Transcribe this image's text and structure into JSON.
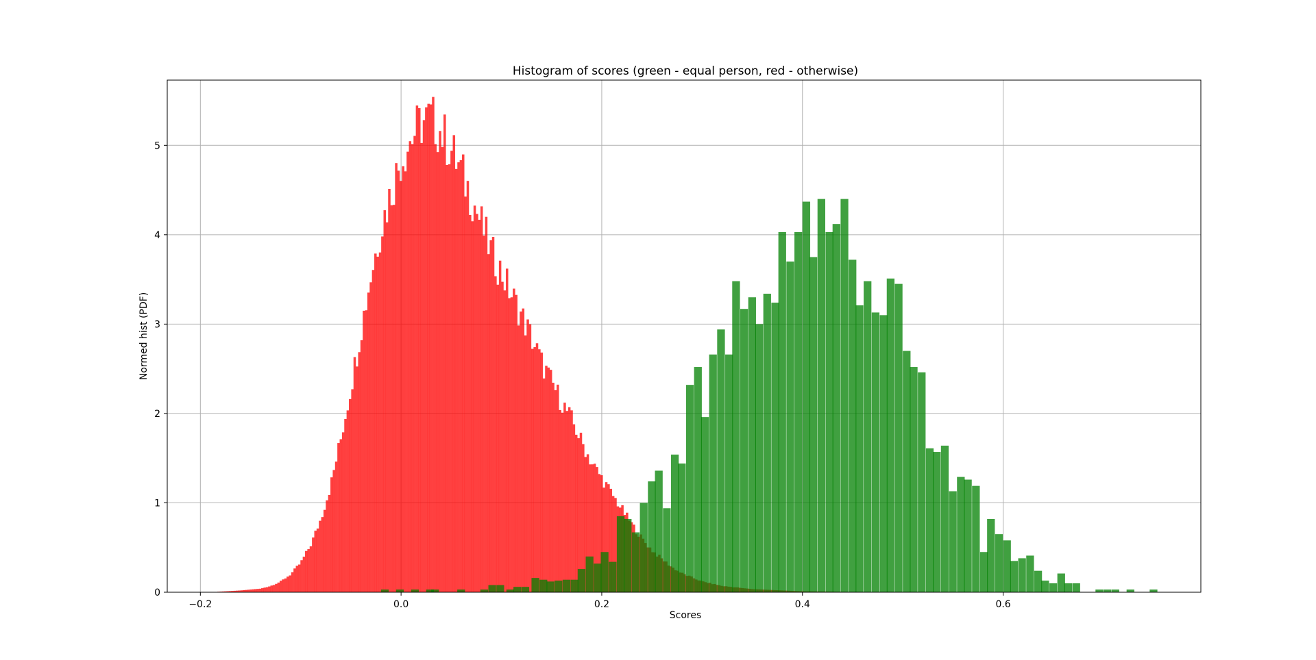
{
  "chart_data": {
    "type": "histogram",
    "title": "Histogram of scores (green - equal person, red - otherwise)",
    "xlabel": "Scores",
    "ylabel": "Normed hist (PDF)",
    "xlim": [
      -0.233,
      0.797
    ],
    "ylim": [
      0,
      5.73
    ],
    "xticks": [
      -0.2,
      0.0,
      0.2,
      0.4,
      0.6
    ],
    "xtick_labels": [
      "−0.2",
      "0.0",
      "0.2",
      "0.4",
      "0.6"
    ],
    "yticks": [
      0,
      1,
      2,
      3,
      4,
      5
    ],
    "ytick_labels": [
      "0",
      "1",
      "2",
      "3",
      "4",
      "5"
    ],
    "grid": true,
    "legend": "none",
    "series": [
      {
        "color": "#ff0000",
        "alpha": 0.75,
        "x_start": -0.19,
        "bin_width": 0.0023,
        "points": [
          [
            -0.19,
            0.0
          ],
          [
            -0.175,
            0.01
          ],
          [
            -0.16,
            0.02
          ],
          [
            -0.14,
            0.04
          ],
          [
            -0.13,
            0.07
          ],
          [
            -0.12,
            0.12
          ],
          [
            -0.11,
            0.2
          ],
          [
            -0.1,
            0.33
          ],
          [
            -0.09,
            0.53
          ],
          [
            -0.08,
            0.82
          ],
          [
            -0.07,
            1.2
          ],
          [
            -0.06,
            1.72
          ],
          [
            -0.05,
            2.3
          ],
          [
            -0.04,
            2.93
          ],
          [
            -0.03,
            3.55
          ],
          [
            -0.02,
            4.08
          ],
          [
            -0.01,
            4.48
          ],
          [
            0.0,
            4.85
          ],
          [
            0.01,
            5.08
          ],
          [
            0.02,
            5.25
          ],
          [
            0.03,
            5.3
          ],
          [
            0.04,
            5.15
          ],
          [
            0.05,
            4.95
          ],
          [
            0.06,
            4.7
          ],
          [
            0.07,
            4.43
          ],
          [
            0.08,
            4.12
          ],
          [
            0.09,
            3.8
          ],
          [
            0.1,
            3.58
          ],
          [
            0.11,
            3.33
          ],
          [
            0.12,
            3.1
          ],
          [
            0.13,
            2.85
          ],
          [
            0.14,
            2.57
          ],
          [
            0.15,
            2.35
          ],
          [
            0.16,
            2.13
          ],
          [
            0.17,
            1.93
          ],
          [
            0.18,
            1.68
          ],
          [
            0.19,
            1.45
          ],
          [
            0.2,
            1.28
          ],
          [
            0.21,
            1.1
          ],
          [
            0.22,
            0.93
          ],
          [
            0.23,
            0.76
          ],
          [
            0.24,
            0.6
          ],
          [
            0.25,
            0.47
          ],
          [
            0.26,
            0.37
          ],
          [
            0.27,
            0.28
          ],
          [
            0.28,
            0.21
          ],
          [
            0.3,
            0.12
          ],
          [
            0.32,
            0.07
          ],
          [
            0.35,
            0.035
          ],
          [
            0.4,
            0.01
          ],
          [
            0.45,
            0.003
          ],
          [
            0.5,
            0.0
          ]
        ]
      },
      {
        "color": "#008000",
        "alpha": 0.75,
        "bin_width": 0.0077,
        "bins": [
          [
            -0.02,
            0.03
          ],
          [
            -0.005,
            0.03
          ],
          [
            0.01,
            0.03
          ],
          [
            0.025,
            0.03
          ],
          [
            0.03,
            0.03
          ],
          [
            0.056,
            0.03
          ],
          [
            0.079,
            0.03
          ],
          [
            0.087,
            0.08
          ],
          [
            0.095,
            0.08
          ],
          [
            0.105,
            0.03
          ],
          [
            0.112,
            0.06
          ],
          [
            0.12,
            0.06
          ],
          [
            0.13,
            0.16
          ],
          [
            0.138,
            0.14
          ],
          [
            0.145,
            0.12
          ],
          [
            0.153,
            0.13
          ],
          [
            0.161,
            0.14
          ],
          [
            0.169,
            0.14
          ],
          [
            0.176,
            0.26
          ],
          [
            0.184,
            0.4
          ],
          [
            0.192,
            0.32
          ],
          [
            0.199,
            0.45
          ],
          [
            0.207,
            0.34
          ],
          [
            0.215,
            0.85
          ],
          [
            0.222,
            0.82
          ],
          [
            0.23,
            0.67
          ],
          [
            0.238,
            1.0
          ],
          [
            0.246,
            1.24
          ],
          [
            0.253,
            1.36
          ],
          [
            0.261,
            0.94
          ],
          [
            0.269,
            1.54
          ],
          [
            0.276,
            1.44
          ],
          [
            0.284,
            2.32
          ],
          [
            0.292,
            2.52
          ],
          [
            0.299,
            1.96
          ],
          [
            0.307,
            2.66
          ],
          [
            0.315,
            2.94
          ],
          [
            0.323,
            2.66
          ],
          [
            0.33,
            3.48
          ],
          [
            0.338,
            3.17
          ],
          [
            0.346,
            3.3
          ],
          [
            0.353,
            3.0
          ],
          [
            0.361,
            3.34
          ],
          [
            0.369,
            3.24
          ],
          [
            0.376,
            4.03
          ],
          [
            0.384,
            3.7
          ],
          [
            0.392,
            4.03
          ],
          [
            0.4,
            4.37
          ],
          [
            0.407,
            3.75
          ],
          [
            0.415,
            4.4
          ],
          [
            0.423,
            4.03
          ],
          [
            0.43,
            4.12
          ],
          [
            0.438,
            4.4
          ],
          [
            0.446,
            3.72
          ],
          [
            0.453,
            3.21
          ],
          [
            0.461,
            3.48
          ],
          [
            0.469,
            3.13
          ],
          [
            0.477,
            3.1
          ],
          [
            0.484,
            3.51
          ],
          [
            0.492,
            3.45
          ],
          [
            0.5,
            2.7
          ],
          [
            0.507,
            2.52
          ],
          [
            0.515,
            2.46
          ],
          [
            0.523,
            1.61
          ],
          [
            0.53,
            1.57
          ],
          [
            0.538,
            1.64
          ],
          [
            0.546,
            1.13
          ],
          [
            0.554,
            1.29
          ],
          [
            0.561,
            1.26
          ],
          [
            0.569,
            1.19
          ],
          [
            0.577,
            0.45
          ],
          [
            0.584,
            0.82
          ],
          [
            0.592,
            0.65
          ],
          [
            0.6,
            0.58
          ],
          [
            0.607,
            0.35
          ],
          [
            0.615,
            0.38
          ],
          [
            0.623,
            0.41
          ],
          [
            0.631,
            0.24
          ],
          [
            0.638,
            0.13
          ],
          [
            0.646,
            0.1
          ],
          [
            0.654,
            0.21
          ],
          [
            0.661,
            0.1
          ],
          [
            0.669,
            0.1
          ],
          [
            0.692,
            0.03
          ],
          [
            0.7,
            0.03
          ],
          [
            0.708,
            0.03
          ],
          [
            0.723,
            0.03
          ],
          [
            0.746,
            0.03
          ]
        ]
      }
    ]
  }
}
